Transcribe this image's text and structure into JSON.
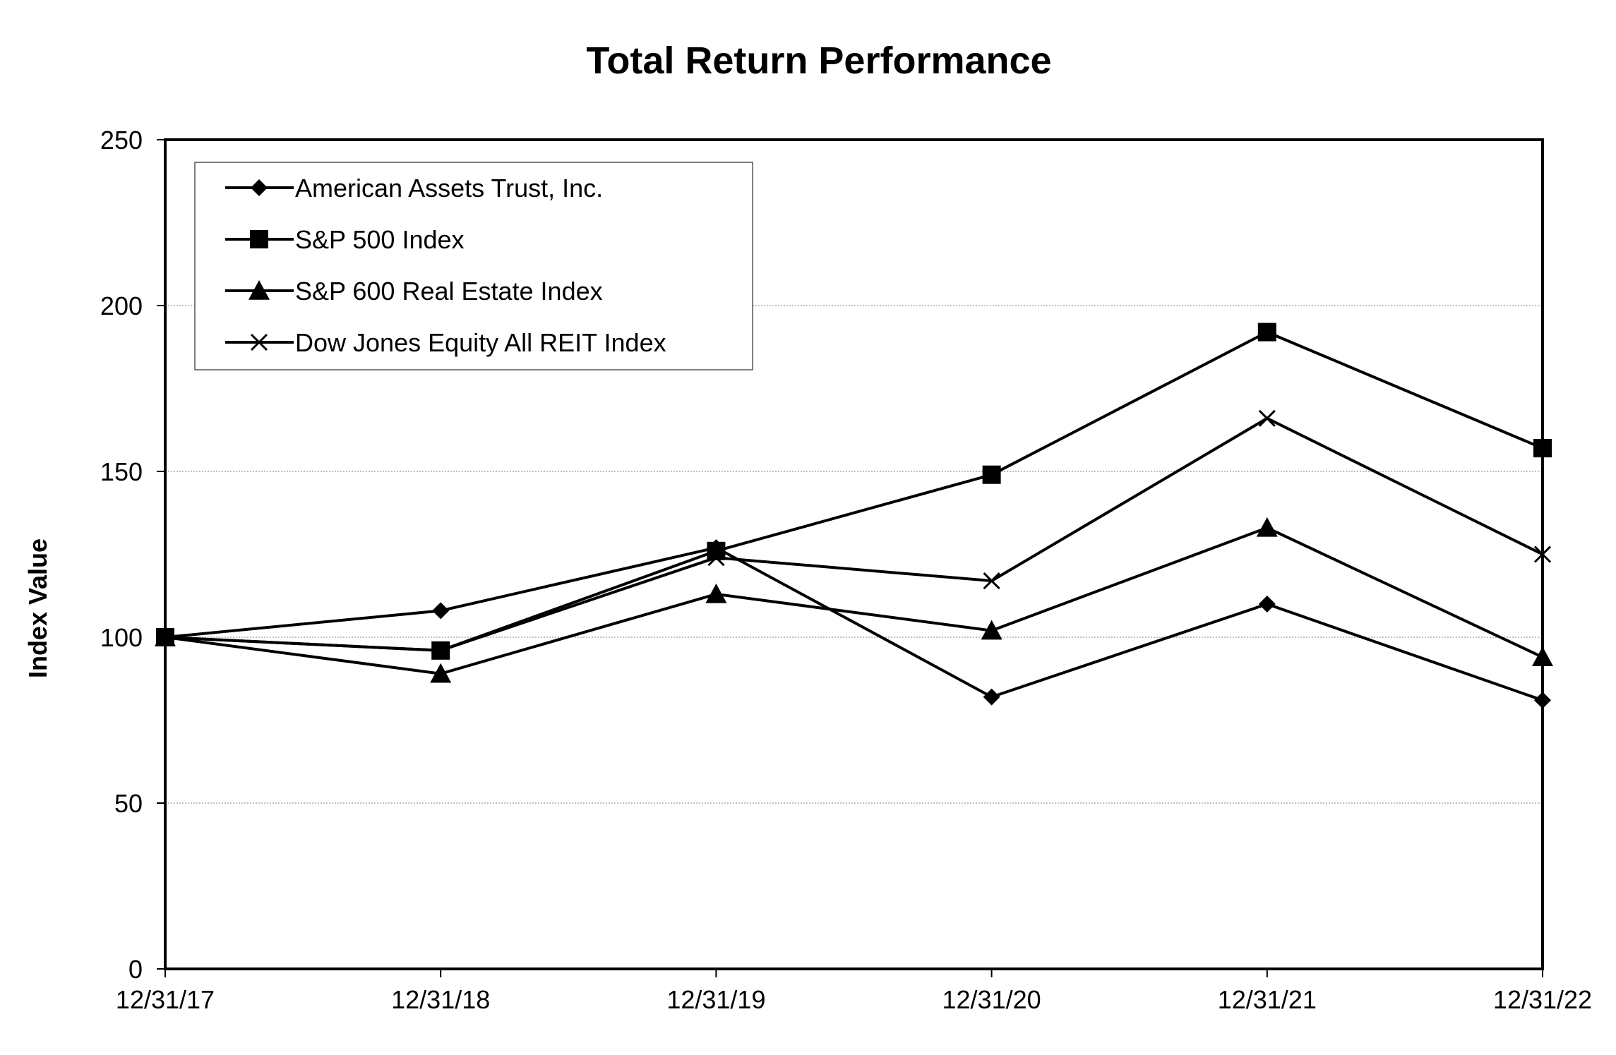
{
  "chart_data": {
    "type": "line",
    "title": "Total Return Performance",
    "xlabel": "",
    "ylabel": "Index Value",
    "categories": [
      "12/31/17",
      "12/31/18",
      "12/31/19",
      "12/31/20",
      "12/31/21",
      "12/31/22"
    ],
    "ylim": [
      0,
      250
    ],
    "yticks": [
      0,
      50,
      100,
      150,
      200,
      250
    ],
    "grid": true,
    "legend_position": "top-left",
    "series": [
      {
        "name": "American Assets Trust, Inc.",
        "marker": "diamond",
        "values": [
          100,
          108,
          127,
          82,
          110,
          81
        ]
      },
      {
        "name": "S&P 500 Index",
        "marker": "square",
        "values": [
          100,
          96,
          126,
          149,
          192,
          157
        ]
      },
      {
        "name": "S&P 600 Real Estate Index",
        "marker": "triangle",
        "values": [
          100,
          89,
          113,
          102,
          133,
          94
        ]
      },
      {
        "name": "Dow Jones Equity All REIT Index",
        "marker": "x",
        "values": [
          100,
          96,
          124,
          117,
          166,
          125
        ]
      }
    ],
    "line_color": "#000000",
    "grid_color": "#999999"
  }
}
